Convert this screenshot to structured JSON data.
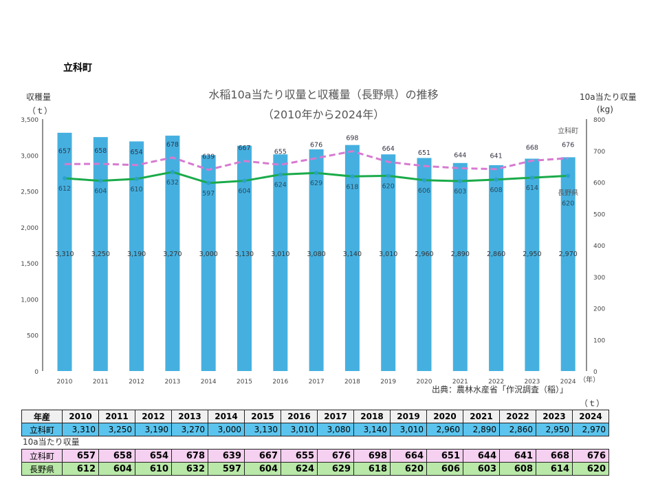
{
  "town": "立科町",
  "chart_data": {
    "type": "bar+line",
    "title": "水稲10a当たり収量と収穫量（長野県）の推移",
    "subtitle": "（2010年から2024年）",
    "ylabel_left": "収穫量",
    "ylabel_left_unit": "（ｔ）",
    "ylabel_right": "10a当たり収量",
    "ylabel_right_unit": "(kg)",
    "xlabel_unit": "（年）",
    "ylim_left": [
      0,
      3500
    ],
    "ylim_right": [
      0,
      800
    ],
    "yticks_left": [
      "0",
      "500",
      "1,000",
      "1,500",
      "2,000",
      "2,500",
      "3,000",
      "3,500"
    ],
    "yticks_right": [
      "0",
      "100",
      "200",
      "300",
      "400",
      "500",
      "600",
      "700",
      "800"
    ],
    "categories": [
      "2010",
      "2011",
      "2012",
      "2013",
      "2014",
      "2015",
      "2016",
      "2017",
      "2018",
      "2019",
      "2020",
      "2021",
      "2022",
      "2023",
      "2024"
    ],
    "bar_series": {
      "values": [
        3310,
        3250,
        3190,
        3270,
        3000,
        3130,
        3010,
        3080,
        3140,
        3010,
        2960,
        2890,
        2860,
        2950,
        2970
      ],
      "labels": [
        "3,310",
        "3,250",
        "3,190",
        "3,270",
        "3,000",
        "3,130",
        "3,010",
        "3,080",
        "3,140",
        "3,010",
        "2,960",
        "2,890",
        "2,860",
        "2,950",
        "2,970"
      ],
      "color": "#45b0e0",
      "axis": "left"
    },
    "line_series": [
      {
        "name": "立科町",
        "values": [
          657,
          658,
          654,
          678,
          639,
          667,
          655,
          676,
          698,
          664,
          651,
          644,
          641,
          668,
          676
        ],
        "color": "#d77ad0",
        "style": "dashed",
        "axis": "right"
      },
      {
        "name": "長野県",
        "values": [
          612,
          604,
          610,
          632,
          597,
          604,
          624,
          629,
          618,
          620,
          606,
          603,
          608,
          614,
          620
        ],
        "color": "#1aaa4a",
        "style": "solid",
        "axis": "right"
      }
    ],
    "source": "出典：農林水産省「作況調査（稲）」"
  },
  "table": {
    "unit": "（ｔ）",
    "header_label": "年産",
    "harvest_label": "立科町",
    "yield_caption": "10a当たり収量",
    "yield_town_label": "立科町",
    "yield_pref_label": "長野県"
  }
}
